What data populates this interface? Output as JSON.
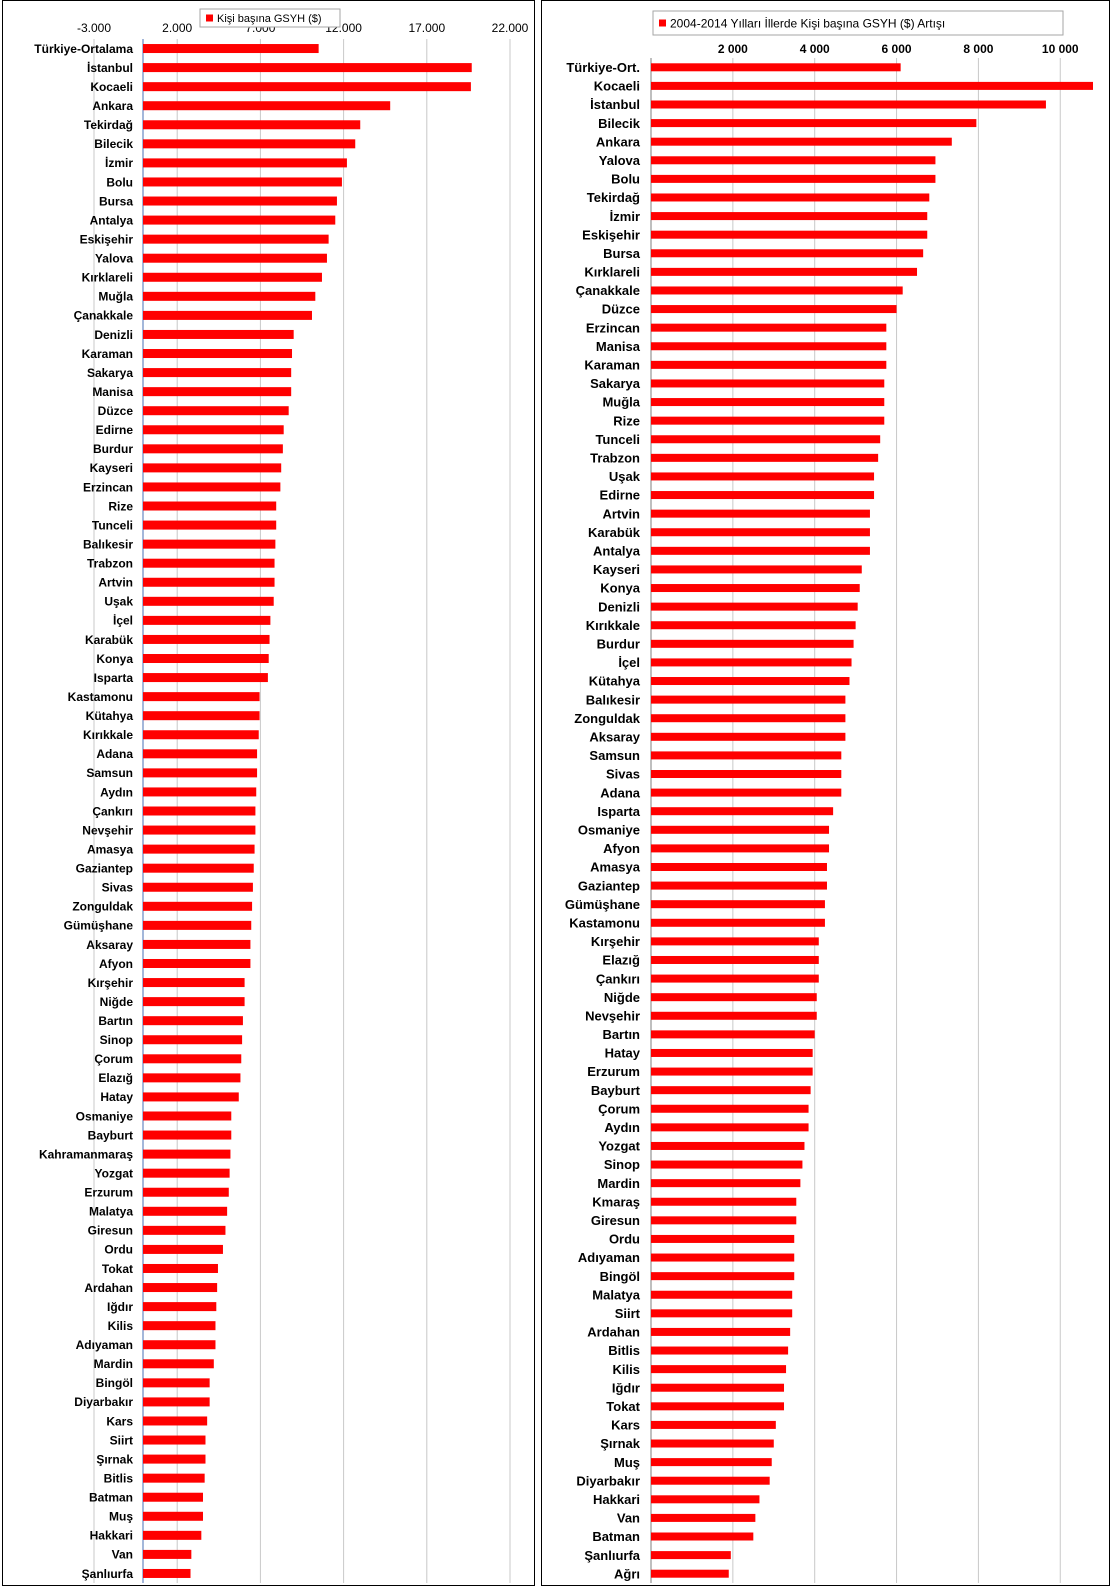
{
  "chart_data": [
    {
      "type": "bar",
      "orientation": "horizontal",
      "title": "",
      "legend": "top",
      "grid": true,
      "bar_color": "#ff0000",
      "xlim": [
        -3000,
        22000
      ],
      "xticks": [
        -3000,
        2000,
        7000,
        12000,
        17000,
        22000
      ],
      "xtick_labels": [
        "-3.000",
        "2.000",
        "7.000",
        "12.000",
        "17.000",
        "22.000"
      ],
      "series": [
        {
          "name": "Kişi başına GSYH ($)",
          "color": "#ff0000"
        }
      ],
      "categories": [
        "Türkiye-Ortalama",
        "İstanbul",
        "Kocaeli",
        "Ankara",
        "Tekirdağ",
        "Bilecik",
        "İzmir",
        "Bolu",
        "Bursa",
        "Antalya",
        "Eskişehir",
        "Yalova",
        "Kırklareli",
        "Muğla",
        "Çanakkale",
        "Denizli",
        "Karaman",
        "Sakarya",
        "Manisa",
        "Düzce",
        "Edirne",
        "Burdur",
        "Kayseri",
        "Erzincan",
        "Rize",
        "Tunceli",
        "Balıkesir",
        "Trabzon",
        "Artvin",
        "Uşak",
        "İçel",
        "Karabük",
        "Konya",
        "Isparta",
        "Kastamonu",
        "Kütahya",
        "Kırıkkale",
        "Adana",
        "Samsun",
        "Aydın",
        "Çankırı",
        "Nevşehir",
        "Amasya",
        "Gaziantep",
        "Sivas",
        "Zonguldak",
        "Gümüşhane",
        "Aksaray",
        "Afyon",
        "Kırşehir",
        "Niğde",
        "Bartın",
        "Sinop",
        "Çorum",
        "Elazığ",
        "Hatay",
        "Osmaniye",
        "Bayburt",
        "Kahramanmaraş",
        "Yozgat",
        "Erzurum",
        "Malatya",
        "Giresun",
        "Ordu",
        "Tokat",
        "Ardahan",
        "Iğdır",
        "Kilis",
        "Adıyaman",
        "Mardin",
        "Bingöl",
        "Diyarbakır",
        "Kars",
        "Siirt",
        "Şırnak",
        "Bitlis",
        "Batman",
        "Muş",
        "Hakkari",
        "Van",
        "Şanlıurfa"
      ],
      "values": [
        10500,
        19700,
        19650,
        14800,
        13000,
        12700,
        12200,
        11900,
        11600,
        11500,
        11100,
        11000,
        10700,
        10300,
        10100,
        9000,
        8900,
        8850,
        8850,
        8700,
        8400,
        8350,
        8250,
        8200,
        7950,
        7950,
        7900,
        7850,
        7850,
        7800,
        7600,
        7550,
        7500,
        7450,
        6950,
        6950,
        6900,
        6800,
        6800,
        6750,
        6700,
        6700,
        6650,
        6600,
        6550,
        6500,
        6450,
        6400,
        6400,
        6050,
        6050,
        5950,
        5900,
        5850,
        5800,
        5700,
        5250,
        5250,
        5200,
        5150,
        5100,
        5000,
        4900,
        4750,
        4450,
        4400,
        4350,
        4300,
        4300,
        4200,
        3950,
        3950,
        3800,
        3700,
        3700,
        3650,
        3550,
        3550,
        3450,
        2850,
        2800
      ]
    },
    {
      "type": "bar",
      "orientation": "horizontal",
      "title": "",
      "legend": "top",
      "grid": true,
      "bar_color": "#ff0000",
      "xlim": [
        0,
        10800
      ],
      "xticks": [
        2000,
        4000,
        6000,
        8000,
        10000
      ],
      "xtick_labels": [
        "2 000",
        "4 000",
        "6 000",
        "8 000",
        "10 000"
      ],
      "series": [
        {
          "name": "2004-2014 Yılları İllerde Kişi başına GSYH ($) Artışı",
          "color": "#ff0000"
        }
      ],
      "categories": [
        "Türkiye-Ort.",
        "Kocaeli",
        "İstanbul",
        "Bilecik",
        "Ankara",
        "Yalova",
        "Bolu",
        "Tekirdağ",
        "İzmir",
        "Eskişehir",
        "Bursa",
        "Kırklareli",
        "Çanakkale",
        "Düzce",
        "Erzincan",
        "Manisa",
        "Karaman",
        "Sakarya",
        "Muğla",
        "Rize",
        "Tunceli",
        "Trabzon",
        "Uşak",
        "Edirne",
        "Artvin",
        "Karabük",
        "Antalya",
        "Kayseri",
        "Konya",
        "Denizli",
        "Kırıkkale",
        "Burdur",
        "İçel",
        "Kütahya",
        "Balıkesir",
        "Zonguldak",
        "Aksaray",
        "Samsun",
        "Sivas",
        "Adana",
        "Isparta",
        "Osmaniye",
        "Afyon",
        "Amasya",
        "Gaziantep",
        "Gümüşhane",
        "Kastamonu",
        "Kırşehir",
        "Elazığ",
        "Çankırı",
        "Niğde",
        "Nevşehir",
        "Bartın",
        "Hatay",
        "Erzurum",
        "Bayburt",
        "Çorum",
        "Aydın",
        "Yozgat",
        "Sinop",
        "Mardin",
        "Kmaraş",
        "Giresun",
        "Ordu",
        "Adıyaman",
        "Bingöl",
        "Malatya",
        "Siirt",
        "Ardahan",
        "Bitlis",
        "Kilis",
        "Iğdır",
        "Tokat",
        "Kars",
        "Şırnak",
        "Muş",
        "Diyarbakır",
        "Hakkari",
        "Van",
        "Batman",
        "Şanlıurfa",
        "Ağrı"
      ],
      "values": [
        6100,
        10800,
        9650,
        7950,
        7350,
        6950,
        6950,
        6800,
        6750,
        6750,
        6650,
        6500,
        6150,
        6000,
        5750,
        5750,
        5750,
        5700,
        5700,
        5700,
        5600,
        5550,
        5450,
        5450,
        5350,
        5350,
        5350,
        5150,
        5100,
        5050,
        5000,
        4950,
        4900,
        4850,
        4750,
        4750,
        4750,
        4650,
        4650,
        4650,
        4450,
        4350,
        4350,
        4300,
        4300,
        4250,
        4250,
        4100,
        4100,
        4100,
        4050,
        4050,
        4000,
        3950,
        3950,
        3900,
        3850,
        3850,
        3750,
        3700,
        3650,
        3550,
        3550,
        3500,
        3500,
        3500,
        3450,
        3450,
        3400,
        3350,
        3300,
        3250,
        3250,
        3050,
        3000,
        2950,
        2900,
        2650,
        2550,
        2500,
        1950,
        1900
      ]
    }
  ]
}
